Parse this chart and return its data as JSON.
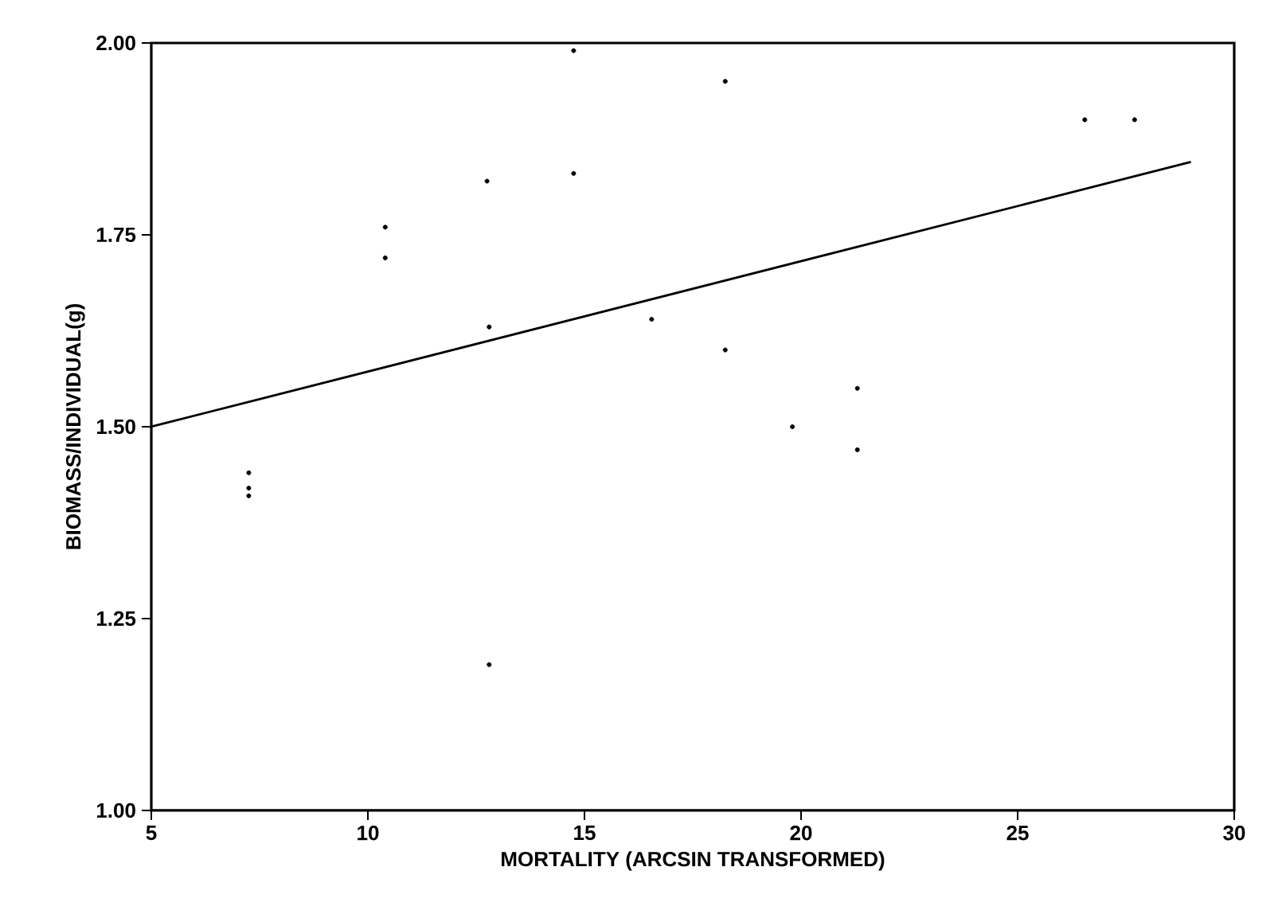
{
  "chart_data": {
    "type": "scatter",
    "xlabel": "MORTALITY (ARCSIN TRANSFORMED)",
    "ylabel": "BIOMASS/INDIVIDUAL(g)",
    "series": [
      {
        "color": "#000000",
        "marker": "circle",
        "x": [
          14.75,
          12.75,
          14.75,
          10.4,
          10.4,
          12.8,
          16.55,
          7.25,
          7.25,
          7.25,
          12.8,
          18.25,
          26.55,
          27.7,
          18.25,
          21.3,
          19.8,
          21.3
        ],
        "values": [
          1.99,
          1.82,
          1.83,
          1.76,
          1.72,
          1.63,
          1.64,
          1.44,
          1.42,
          1.41,
          1.19,
          1.95,
          1.9,
          1.9,
          1.6,
          1.55,
          1.5,
          1.47
        ]
      },
      {
        "type": "line",
        "color": "#000000",
        "marker": "none",
        "x": [
          5,
          29
        ],
        "values": [
          1.5,
          1.845
        ]
      }
    ],
    "xlim": [
      5,
      30
    ],
    "ylim": [
      1,
      2
    ],
    "xticks": [
      5,
      10,
      15,
      20,
      25,
      30
    ],
    "yticks": [
      {
        "value": 1,
        "label": "1.00"
      },
      {
        "value": 1.25,
        "label": "1.25"
      },
      {
        "value": 1.5,
        "label": "1.50"
      },
      {
        "value": 1.75,
        "label": "1.75"
      },
      {
        "value": 2,
        "label": "2.00"
      }
    ],
    "grid": false
  }
}
